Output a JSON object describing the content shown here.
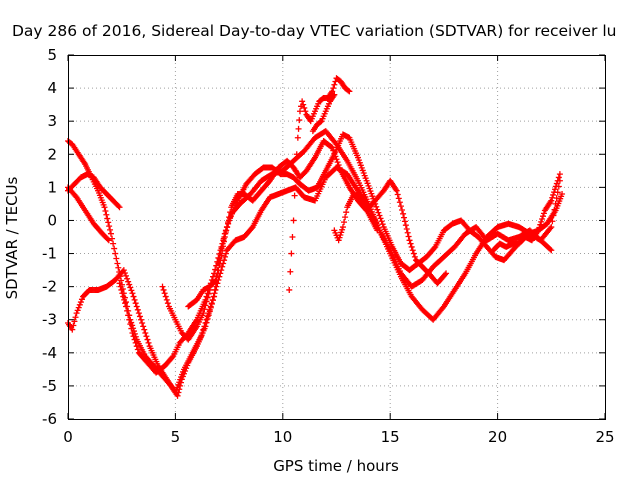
{
  "chart_data": {
    "type": "scatter",
    "title": "Day 286 of 2016, Sidereal Day-to-day VTEC variation (SDTVAR) for receiver lu",
    "xlabel": "GPS time / hours",
    "ylabel": "SDTVAR / TECUs",
    "xlim": [
      0,
      25
    ],
    "ylim": [
      -6,
      5
    ],
    "xticks": [
      0,
      5,
      10,
      15,
      20,
      25
    ],
    "yticks": [
      -6,
      -5,
      -4,
      -3,
      -2,
      -1,
      0,
      1,
      2,
      3,
      4,
      5
    ],
    "grid": true,
    "marker": "plus",
    "color": "#ff0000",
    "series": [
      {
        "points": [
          [
            0.0,
            2.4
          ],
          [
            0.2,
            2.3
          ],
          [
            0.5,
            2.0
          ],
          [
            0.8,
            1.7
          ],
          [
            1.1,
            1.3
          ],
          [
            1.4,
            0.9
          ],
          [
            1.7,
            0.4
          ],
          [
            2.0,
            -0.4
          ],
          [
            2.3,
            -1.3
          ],
          [
            2.6,
            -2.2
          ],
          [
            2.9,
            -3.0
          ],
          [
            3.2,
            -3.6
          ],
          [
            3.6,
            -4.1
          ],
          [
            4.0,
            -4.4
          ],
          [
            4.4,
            -4.7
          ],
          [
            4.8,
            -5.0
          ],
          [
            5.1,
            -5.3
          ],
          [
            5.3,
            -4.8
          ],
          [
            5.6,
            -4.3
          ],
          [
            6.0,
            -3.8
          ],
          [
            6.4,
            -3.2
          ],
          [
            6.8,
            -2.3
          ],
          [
            7.0,
            -1.3
          ],
          [
            7.3,
            -0.4
          ],
          [
            7.6,
            0.2
          ],
          [
            8.0,
            0.5
          ],
          [
            8.5,
            0.8
          ],
          [
            9.0,
            1.2
          ],
          [
            9.5,
            1.4
          ],
          [
            10.0,
            1.5
          ],
          [
            10.5,
            1.8
          ],
          [
            11.0,
            2.1
          ],
          [
            11.5,
            2.5
          ],
          [
            12.0,
            2.7
          ],
          [
            12.5,
            2.3
          ],
          [
            13.0,
            1.8
          ],
          [
            13.5,
            1.2
          ],
          [
            14.0,
            0.5
          ],
          [
            14.5,
            -0.3
          ],
          [
            15.0,
            -1.0
          ],
          [
            15.5,
            -1.7
          ],
          [
            16.0,
            -2.3
          ],
          [
            16.5,
            -2.7
          ],
          [
            17.0,
            -3.0
          ],
          [
            17.5,
            -2.6
          ],
          [
            18.0,
            -2.1
          ],
          [
            18.5,
            -1.6
          ],
          [
            19.0,
            -1.0
          ],
          [
            19.5,
            -0.5
          ],
          [
            20.0,
            -0.2
          ],
          [
            20.5,
            -0.1
          ],
          [
            21.0,
            -0.2
          ],
          [
            21.5,
            -0.4
          ],
          [
            22.0,
            -0.6
          ],
          [
            22.5,
            -0.2
          ],
          [
            22.9,
            1.2
          ]
        ]
      },
      {
        "points": [
          [
            0.0,
            0.9
          ],
          [
            0.3,
            1.1
          ],
          [
            0.6,
            1.3
          ],
          [
            0.9,
            1.4
          ],
          [
            1.2,
            1.3
          ],
          [
            1.5,
            1.0
          ],
          [
            1.8,
            0.8
          ],
          [
            2.1,
            0.6
          ],
          [
            2.4,
            0.4
          ]
        ]
      },
      {
        "points": [
          [
            0.0,
            1.0
          ],
          [
            0.4,
            0.7
          ],
          [
            0.8,
            0.3
          ],
          [
            1.2,
            -0.1
          ],
          [
            1.6,
            -0.4
          ],
          [
            1.9,
            -0.6
          ]
        ]
      },
      {
        "points": [
          [
            0.0,
            -3.1
          ],
          [
            0.2,
            -3.3
          ],
          [
            0.4,
            -2.8
          ],
          [
            0.7,
            -2.3
          ],
          [
            1.0,
            -2.1
          ],
          [
            1.4,
            -2.1
          ],
          [
            1.8,
            -2.0
          ],
          [
            2.2,
            -1.8
          ],
          [
            2.6,
            -1.5
          ],
          [
            3.0,
            -2.2
          ],
          [
            3.4,
            -3.0
          ],
          [
            3.8,
            -3.8
          ],
          [
            4.2,
            -4.4
          ],
          [
            4.6,
            -4.8
          ],
          [
            5.0,
            -5.2
          ],
          [
            5.4,
            -4.5
          ],
          [
            5.8,
            -4.0
          ],
          [
            6.2,
            -3.5
          ],
          [
            6.6,
            -2.7
          ],
          [
            7.0,
            -1.8
          ],
          [
            7.4,
            -0.9
          ],
          [
            7.8,
            -0.6
          ],
          [
            8.2,
            -0.5
          ],
          [
            8.6,
            -0.2
          ],
          [
            9.0,
            0.3
          ],
          [
            9.4,
            0.7
          ],
          [
            9.8,
            0.8
          ],
          [
            10.2,
            0.9
          ],
          [
            10.6,
            1.0
          ],
          [
            11.0,
            0.7
          ],
          [
            11.5,
            0.6
          ],
          [
            12.0,
            1.3
          ],
          [
            12.5,
            1.6
          ],
          [
            13.0,
            1.4
          ],
          [
            13.5,
            0.9
          ],
          [
            14.0,
            0.4
          ],
          [
            14.5,
            -0.3
          ],
          [
            15.0,
            -0.9
          ],
          [
            15.5,
            -1.6
          ],
          [
            16.0,
            -2.0
          ],
          [
            16.5,
            -1.8
          ],
          [
            17.0,
            -1.4
          ],
          [
            17.5,
            -1.1
          ],
          [
            18.0,
            -0.8
          ],
          [
            18.5,
            -0.4
          ],
          [
            19.0,
            -0.2
          ],
          [
            19.5,
            -0.6
          ],
          [
            20.0,
            -0.4
          ],
          [
            20.5,
            -0.6
          ],
          [
            21.0,
            -0.5
          ],
          [
            21.5,
            -0.3
          ],
          [
            22.0,
            -0.6
          ],
          [
            22.5,
            -0.9
          ]
        ]
      },
      {
        "points": [
          [
            2.4,
            -1.9
          ],
          [
            2.7,
            -2.6
          ],
          [
            3.0,
            -3.4
          ],
          [
            3.3,
            -4.0
          ],
          [
            3.7,
            -4.3
          ],
          [
            4.1,
            -4.6
          ],
          [
            4.5,
            -4.4
          ],
          [
            4.9,
            -4.1
          ],
          [
            5.2,
            -3.7
          ],
          [
            5.6,
            -3.4
          ],
          [
            6.0,
            -3.0
          ],
          [
            6.4,
            -2.4
          ],
          [
            6.8,
            -1.6
          ],
          [
            7.1,
            -0.9
          ],
          [
            7.5,
            0.0
          ],
          [
            7.9,
            0.6
          ],
          [
            8.3,
            1.1
          ],
          [
            8.7,
            1.4
          ],
          [
            9.1,
            1.6
          ],
          [
            9.5,
            1.6
          ],
          [
            9.9,
            1.4
          ],
          [
            10.2,
            1.4
          ],
          [
            10.5,
            1.3
          ],
          [
            10.8,
            1.1
          ],
          [
            11.2,
            0.9
          ],
          [
            11.6,
            1.0
          ],
          [
            12.0,
            1.5
          ],
          [
            12.4,
            2.0
          ],
          [
            12.8,
            2.6
          ],
          [
            13.1,
            2.5
          ],
          [
            13.5,
            1.9
          ],
          [
            13.9,
            1.2
          ],
          [
            14.3,
            0.5
          ],
          [
            14.7,
            -0.2
          ],
          [
            15.1,
            -0.8
          ],
          [
            15.5,
            -1.3
          ],
          [
            15.9,
            -1.5
          ],
          [
            16.3,
            -1.3
          ],
          [
            16.7,
            -1.1
          ],
          [
            17.1,
            -0.8
          ],
          [
            17.5,
            -0.3
          ],
          [
            17.9,
            -0.1
          ],
          [
            18.3,
            0.0
          ],
          [
            18.7,
            -0.3
          ],
          [
            19.1,
            -0.5
          ],
          [
            19.5,
            -0.8
          ],
          [
            19.9,
            -1.1
          ],
          [
            20.3,
            -1.2
          ],
          [
            20.7,
            -0.9
          ],
          [
            21.1,
            -0.6
          ],
          [
            21.5,
            -0.4
          ],
          [
            21.9,
            -0.3
          ],
          [
            22.3,
            -0.1
          ],
          [
            22.7,
            0.3
          ],
          [
            23.0,
            0.8
          ]
        ]
      },
      {
        "points": [
          [
            4.4,
            -2.0
          ],
          [
            4.7,
            -2.6
          ],
          [
            5.0,
            -3.0
          ],
          [
            5.3,
            -3.4
          ],
          [
            5.6,
            -3.6
          ],
          [
            6.0,
            -3.2
          ],
          [
            6.3,
            -2.8
          ],
          [
            6.6,
            -2.1
          ]
        ]
      },
      {
        "points": [
          [
            5.6,
            -2.6
          ],
          [
            6.0,
            -2.4
          ],
          [
            6.3,
            -2.1
          ],
          [
            6.6,
            -2.0
          ],
          [
            6.9,
            -1.8
          ],
          [
            7.1,
            -1.2
          ],
          [
            7.3,
            -0.5
          ],
          [
            7.6,
            0.4
          ],
          [
            7.9,
            0.8
          ],
          [
            8.2,
            0.8
          ],
          [
            8.6,
            0.6
          ],
          [
            9.0,
            0.9
          ],
          [
            9.4,
            1.2
          ],
          [
            9.8,
            1.6
          ],
          [
            10.2,
            1.8
          ],
          [
            10.5,
            1.6
          ],
          [
            10.8,
            1.3
          ],
          [
            11.1,
            1.5
          ],
          [
            11.5,
            1.9
          ],
          [
            11.9,
            2.4
          ],
          [
            12.3,
            2.2
          ],
          [
            12.7,
            1.5
          ],
          [
            13.1,
            1.0
          ],
          [
            13.5,
            0.6
          ],
          [
            13.9,
            0.3
          ],
          [
            14.3,
            0.6
          ],
          [
            14.7,
            0.9
          ],
          [
            15.0,
            1.2
          ],
          [
            15.3,
            0.9
          ],
          [
            15.6,
            0.2
          ],
          [
            15.9,
            -0.6
          ],
          [
            16.2,
            -1.2
          ],
          [
            16.5,
            -1.4
          ],
          [
            16.8,
            -1.6
          ],
          [
            17.2,
            -1.9
          ],
          [
            17.6,
            -1.6
          ]
        ]
      },
      {
        "points": [
          [
            10.3,
            -2.1
          ],
          [
            10.4,
            -1.0
          ],
          [
            10.5,
            0.0
          ],
          [
            10.6,
            1.5
          ],
          [
            10.7,
            2.5
          ],
          [
            10.8,
            3.3
          ],
          [
            10.9,
            3.6
          ],
          [
            11.1,
            3.2
          ],
          [
            11.3,
            3.0
          ],
          [
            11.5,
            3.3
          ],
          [
            11.7,
            3.6
          ],
          [
            11.9,
            3.7
          ],
          [
            12.1,
            3.7
          ],
          [
            12.3,
            3.9
          ],
          [
            12.5,
            4.3
          ],
          [
            12.7,
            4.2
          ],
          [
            12.9,
            4.0
          ],
          [
            13.1,
            3.9
          ]
        ]
      },
      {
        "points": [
          [
            11.4,
            2.7
          ],
          [
            11.6,
            2.9
          ],
          [
            11.8,
            3.0
          ],
          [
            12.0,
            3.3
          ],
          [
            12.2,
            3.6
          ],
          [
            12.4,
            3.8
          ]
        ]
      },
      {
        "points": [
          [
            12.4,
            -0.3
          ],
          [
            12.6,
            -0.6
          ],
          [
            12.8,
            -0.2
          ],
          [
            13.0,
            0.4
          ],
          [
            13.3,
            0.8
          ],
          [
            13.6,
            0.7
          ],
          [
            14.0,
            0.2
          ],
          [
            14.4,
            -0.3
          ]
        ]
      },
      {
        "points": [
          [
            19.8,
            -0.9
          ],
          [
            20.1,
            -0.7
          ],
          [
            20.4,
            -0.8
          ],
          [
            20.7,
            -0.7
          ],
          [
            21.0,
            -0.7
          ],
          [
            21.3,
            -0.5
          ],
          [
            21.6,
            -0.6
          ],
          [
            21.9,
            -0.3
          ],
          [
            22.2,
            0.3
          ],
          [
            22.5,
            0.6
          ],
          [
            22.8,
            1.2
          ],
          [
            22.9,
            1.4
          ]
        ]
      }
    ]
  }
}
